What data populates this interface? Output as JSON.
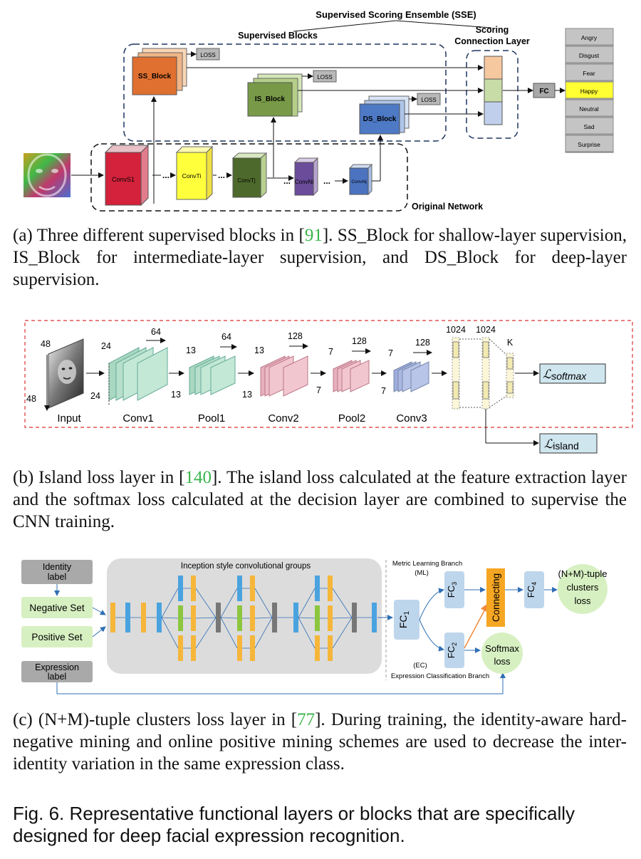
{
  "panel_a": {
    "sse_title": "Supervised Scoring Ensemble (SSE)",
    "supervised_blocks": "Supervised Blocks",
    "scoring_layer_line1": "Scoring",
    "scoring_layer_line2": "Connection Layer",
    "original_network": "Original Network",
    "loss": "LOSS",
    "ss_block": "SS_Block",
    "is_block": "IS_Block",
    "ds_block": "DS_Block",
    "fc": "FC",
    "convs": [
      "ConvS1",
      "ConvTi",
      "ConvTj",
      "ConvNi",
      "ConvNj"
    ],
    "ellipsis": "...",
    "emotions": [
      "Angry",
      "Disgust",
      "Fear",
      "Happy",
      "Neutral",
      "Sad",
      "Surprise"
    ]
  },
  "caption_a": {
    "prefix": "(a) Three different supervised blocks in [",
    "ref": "91",
    "suffix": "]. SS_Block for shallow-layer supervision, IS_Block for intermediate-layer supervision, and DS_Block for deep-layer supervision."
  },
  "panel_b": {
    "input_label": "Input",
    "input_h": "48",
    "input_w": "48",
    "stages": [
      {
        "name": "Conv1",
        "size": "24",
        "depth": "64"
      },
      {
        "name": "Pool1",
        "size": "13",
        "depth": "64"
      },
      {
        "name": "Conv2",
        "size": "13",
        "depth": "128"
      },
      {
        "name": "Pool2",
        "size": "7",
        "depth": "128"
      },
      {
        "name": "Conv3",
        "size": "7",
        "depth": "128"
      }
    ],
    "fc1": "1024",
    "fc2": "1024",
    "k": "K",
    "softmax_loss": "ℒ",
    "softmax_sub": "softmax",
    "island_loss": "ℒ",
    "island_sub": "island"
  },
  "caption_b": {
    "prefix": "(b) Island loss layer in [",
    "ref": "140",
    "suffix": "]. The island loss calculated at the feature extraction layer and the softmax loss calculated at the decision layer are combined to supervise the CNN training."
  },
  "panel_c": {
    "identity_label": [
      "Identity",
      "label"
    ],
    "negative_set": "Negative Set",
    "positive_set": "Positive Set",
    "expression_label": [
      "Expression",
      "label"
    ],
    "inception_title": "Inception style convolutional groups",
    "metric_branch": "Metric Learning Branch",
    "ml": "(ML)",
    "ec": "(EC)",
    "expr_branch": "Expression Classification Branch",
    "fc1": "FC",
    "fc1_sub": "1",
    "fc2": "FC",
    "fc2_sub": "2",
    "fc3": "FC",
    "fc3_sub": "3",
    "fc4": "FC",
    "fc4_sub": "4",
    "connecting": "Connecting",
    "tuple_loss": [
      "(N+M)-tuple",
      "clusters",
      "loss"
    ],
    "softmax_loss": [
      "Softmax",
      "loss"
    ]
  },
  "caption_c": {
    "prefix": "(c) (N+M)-tuple clusters loss layer in [",
    "ref": "77",
    "suffix": "]. During training, the identity-aware hard-negative mining and online positive mining schemes are used to decrease the inter-identity variation in the same expression class."
  },
  "figure_caption": "Fig. 6. Representative functional layers or blocks that are specifically designed for deep facial expression recognition."
}
